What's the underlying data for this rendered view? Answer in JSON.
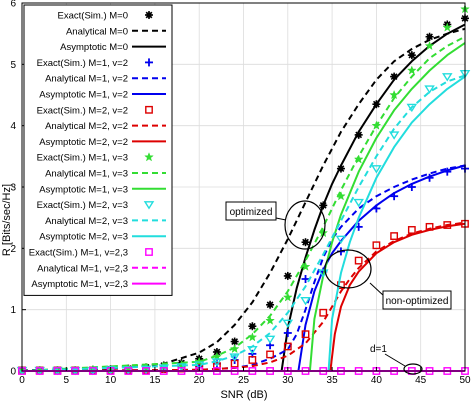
{
  "chart_data": {
    "type": "line",
    "xlabel": "SNR (dB)",
    "ylabel": "R [Bits/sec/Hz]",
    "xlim": [
      0,
      50
    ],
    "ylim": [
      0,
      6
    ],
    "xticks": [
      0,
      5,
      10,
      15,
      20,
      25,
      30,
      35,
      40,
      45,
      50
    ],
    "yticks": [
      0,
      1,
      2,
      3,
      4,
      5,
      6
    ],
    "grid": true,
    "legend_position": "top-left",
    "annotations": [
      {
        "id": "optimized",
        "text": "optimized"
      },
      {
        "id": "non-optimized",
        "text": "non-optimized"
      },
      {
        "id": "d1",
        "text": "d=1"
      }
    ],
    "series": [
      {
        "name": "Exact(Sim.) M=0",
        "style": "marker",
        "marker": "asterisk-filled",
        "color": "#000000",
        "x": [
          0,
          2,
          4,
          6,
          8,
          10,
          12,
          14,
          16,
          18,
          20,
          22,
          24,
          26,
          28,
          30,
          32,
          34,
          36,
          38,
          40,
          42,
          44,
          46,
          48,
          50
        ],
        "y": [
          0.01,
          0.01,
          0.01,
          0.01,
          0.02,
          0.03,
          0.04,
          0.06,
          0.09,
          0.13,
          0.2,
          0.31,
          0.48,
          0.73,
          1.08,
          1.55,
          2.1,
          2.7,
          3.3,
          3.85,
          4.35,
          4.8,
          5.15,
          5.45,
          5.65,
          5.75
        ]
      },
      {
        "name": "Analytical M=0",
        "style": "dashed",
        "color": "#000000",
        "x": [
          0,
          10,
          16,
          20,
          22,
          24,
          26,
          28,
          30,
          32,
          34,
          36,
          38,
          40,
          42,
          44,
          46,
          48,
          50
        ],
        "y": [
          0.01,
          0.04,
          0.12,
          0.3,
          0.47,
          0.75,
          1.12,
          1.6,
          2.15,
          2.75,
          3.35,
          3.9,
          4.35,
          4.75,
          5.05,
          5.25,
          5.4,
          5.5,
          5.58
        ]
      },
      {
        "name": "Asymptotic M=0",
        "style": "solid",
        "color": "#000000",
        "x": [
          29.3,
          30,
          31,
          32,
          33,
          34,
          35,
          36,
          38,
          40,
          42,
          44,
          46,
          48,
          50
        ],
        "y": [
          0.0,
          0.7,
          1.35,
          1.85,
          2.3,
          2.7,
          3.05,
          3.35,
          3.9,
          4.35,
          4.75,
          5.05,
          5.3,
          5.5,
          5.65
        ]
      },
      {
        "name": "Exact(Sim.) M=1, v=2",
        "style": "marker",
        "marker": "plus",
        "color": "#0000ee",
        "x": [
          0,
          2,
          4,
          6,
          8,
          10,
          12,
          14,
          16,
          18,
          20,
          22,
          24,
          26,
          28,
          30,
          32,
          34,
          36,
          38,
          40,
          42,
          44,
          46,
          48,
          50
        ],
        "y": [
          0.01,
          0.01,
          0.01,
          0.01,
          0.01,
          0.02,
          0.02,
          0.03,
          0.04,
          0.06,
          0.08,
          0.12,
          0.18,
          0.28,
          0.42,
          0.62,
          1.5,
          1.62,
          1.95,
          2.35,
          2.65,
          2.85,
          3.0,
          3.15,
          3.25,
          3.3
        ]
      },
      {
        "name": "Analytical M=1, v=2",
        "style": "dashed",
        "color": "#0000ee",
        "x": [
          0,
          20,
          24,
          26,
          28,
          30,
          31,
          32,
          33,
          34,
          35,
          36,
          38,
          40,
          42,
          44,
          46,
          48,
          50
        ],
        "y": [
          0.0,
          0.02,
          0.05,
          0.1,
          0.2,
          0.35,
          0.6,
          1.0,
          1.45,
          1.85,
          2.15,
          2.35,
          2.65,
          2.85,
          3.0,
          3.12,
          3.22,
          3.3,
          3.35
        ]
      },
      {
        "name": "Asymptotic M=1, v=2",
        "style": "solid",
        "color": "#0000ee",
        "x": [
          31.2,
          32,
          33,
          34,
          35,
          36,
          38,
          40,
          42,
          44,
          46,
          48,
          50
        ],
        "y": [
          0.0,
          0.75,
          1.3,
          1.65,
          1.92,
          2.12,
          2.45,
          2.7,
          2.9,
          3.05,
          3.17,
          3.27,
          3.35
        ]
      },
      {
        "name": "Exact(Sim.) M=2, v=2",
        "style": "marker",
        "marker": "square",
        "color": "#dd0000",
        "x": [
          0,
          2,
          4,
          6,
          8,
          10,
          12,
          14,
          16,
          18,
          20,
          22,
          24,
          26,
          28,
          30,
          32,
          34,
          36,
          38,
          40,
          42,
          44,
          46,
          48,
          50
        ],
        "y": [
          0.01,
          0.01,
          0.01,
          0.01,
          0.01,
          0.01,
          0.02,
          0.02,
          0.03,
          0.04,
          0.06,
          0.08,
          0.12,
          0.18,
          0.27,
          0.4,
          0.6,
          0.95,
          1.4,
          1.8,
          2.05,
          2.2,
          2.3,
          2.35,
          2.38,
          2.4
        ]
      },
      {
        "name": "Analytical M=2, v=2",
        "style": "dashed",
        "color": "#dd0000",
        "x": [
          0,
          20,
          24,
          26,
          28,
          30,
          32,
          34,
          35,
          36,
          37,
          38,
          40,
          42,
          44,
          46,
          48,
          50
        ],
        "y": [
          0.0,
          0.02,
          0.05,
          0.08,
          0.14,
          0.25,
          0.45,
          0.8,
          1.05,
          1.3,
          1.5,
          1.68,
          1.95,
          2.12,
          2.24,
          2.32,
          2.38,
          2.42
        ]
      },
      {
        "name": "Asymptotic M=2, v=2",
        "style": "solid",
        "color": "#dd0000",
        "x": [
          34.8,
          35.3,
          36,
          37,
          38,
          40,
          42,
          44,
          46,
          48,
          50
        ],
        "y": [
          0.0,
          0.6,
          1.05,
          1.4,
          1.62,
          1.92,
          2.1,
          2.22,
          2.3,
          2.36,
          2.4
        ]
      },
      {
        "name": "Exact(Sim.) M=1, v=3",
        "style": "marker",
        "marker": "star",
        "color": "#33dd33",
        "x": [
          0,
          2,
          4,
          6,
          8,
          10,
          12,
          14,
          16,
          18,
          20,
          22,
          24,
          26,
          28,
          30,
          32,
          34,
          36,
          38,
          40,
          42,
          44,
          46,
          48,
          50
        ],
        "y": [
          0.01,
          0.01,
          0.01,
          0.01,
          0.02,
          0.02,
          0.03,
          0.05,
          0.07,
          0.1,
          0.15,
          0.23,
          0.36,
          0.55,
          0.82,
          1.2,
          1.7,
          2.25,
          2.85,
          3.45,
          4.0,
          4.5,
          4.9,
          5.3,
          5.6,
          5.9
        ]
      },
      {
        "name": "Analytical M=1, v=3",
        "style": "dashed",
        "color": "#33dd33",
        "x": [
          0,
          20,
          22,
          24,
          26,
          28,
          30,
          32,
          34,
          36,
          38,
          40,
          42,
          44,
          46,
          48,
          50
        ],
        "y": [
          0.0,
          0.15,
          0.25,
          0.38,
          0.6,
          0.9,
          1.3,
          1.8,
          2.35,
          2.95,
          3.5,
          4.0,
          4.45,
          4.8,
          5.1,
          5.3,
          5.45
        ]
      },
      {
        "name": "Asymptotic M=1, v=3",
        "style": "solid",
        "color": "#33dd33",
        "x": [
          32.5,
          33,
          34,
          35,
          36,
          38,
          40,
          42,
          44,
          46,
          48,
          50
        ],
        "y": [
          0.0,
          0.85,
          1.55,
          2.1,
          2.55,
          3.25,
          3.8,
          4.25,
          4.6,
          4.9,
          5.15,
          5.35
        ]
      },
      {
        "name": "Exact(Sim.) M=2, v=3",
        "style": "marker",
        "marker": "triangle-down",
        "color": "#22dddd",
        "x": [
          0,
          2,
          4,
          6,
          8,
          10,
          12,
          14,
          16,
          18,
          20,
          22,
          24,
          26,
          28,
          30,
          32,
          34,
          36,
          38,
          40,
          42,
          44,
          46,
          48,
          50
        ],
        "y": [
          0.01,
          0.01,
          0.01,
          0.01,
          0.01,
          0.02,
          0.02,
          0.03,
          0.05,
          0.07,
          0.1,
          0.15,
          0.23,
          0.35,
          0.52,
          0.78,
          1.15,
          1.6,
          2.15,
          2.75,
          3.3,
          3.85,
          4.3,
          4.6,
          4.8,
          4.85
        ]
      },
      {
        "name": "Analytical M=2, v=3",
        "style": "dashed",
        "color": "#22dddd",
        "x": [
          0,
          20,
          22,
          24,
          26,
          28,
          30,
          32,
          34,
          36,
          38,
          40,
          42,
          44,
          46,
          48,
          50
        ],
        "y": [
          0.0,
          0.1,
          0.16,
          0.25,
          0.4,
          0.62,
          0.95,
          1.38,
          1.9,
          2.45,
          3.0,
          3.5,
          3.95,
          4.3,
          4.55,
          4.72,
          4.82
        ]
      },
      {
        "name": "Asymptotic M=2, v=3",
        "style": "solid",
        "color": "#22dddd",
        "x": [
          34.6,
          35,
          36,
          37,
          38,
          40,
          42,
          44,
          46,
          48,
          50
        ],
        "y": [
          0.0,
          0.85,
          1.6,
          2.1,
          2.5,
          3.15,
          3.65,
          4.05,
          4.35,
          4.6,
          4.8
        ]
      },
      {
        "name": "Exact(Sim.) M=1, v=2,3",
        "style": "marker",
        "marker": "square",
        "color": "#ff00ff",
        "x": [
          0,
          2,
          4,
          6,
          8,
          10,
          12,
          14,
          16,
          18,
          20,
          22,
          24,
          26,
          28,
          30,
          32,
          34,
          36,
          38,
          40,
          42,
          44,
          46,
          48,
          50
        ],
        "y": [
          0,
          0,
          0,
          0,
          0,
          0,
          0,
          0,
          0,
          0,
          0,
          0,
          0,
          0,
          0,
          0,
          0,
          0,
          0,
          0,
          0,
          0,
          0,
          0,
          0,
          0
        ]
      },
      {
        "name": "Analytical M=1, v=2,3",
        "style": "dashed",
        "color": "#ff00ff",
        "x": [
          0,
          50
        ],
        "y": [
          0,
          0
        ]
      },
      {
        "name": "Asymptotic M=1, v=2,3",
        "style": "solid",
        "color": "#ff00ff",
        "x": [
          0,
          50
        ],
        "y": [
          0,
          0
        ]
      }
    ]
  }
}
